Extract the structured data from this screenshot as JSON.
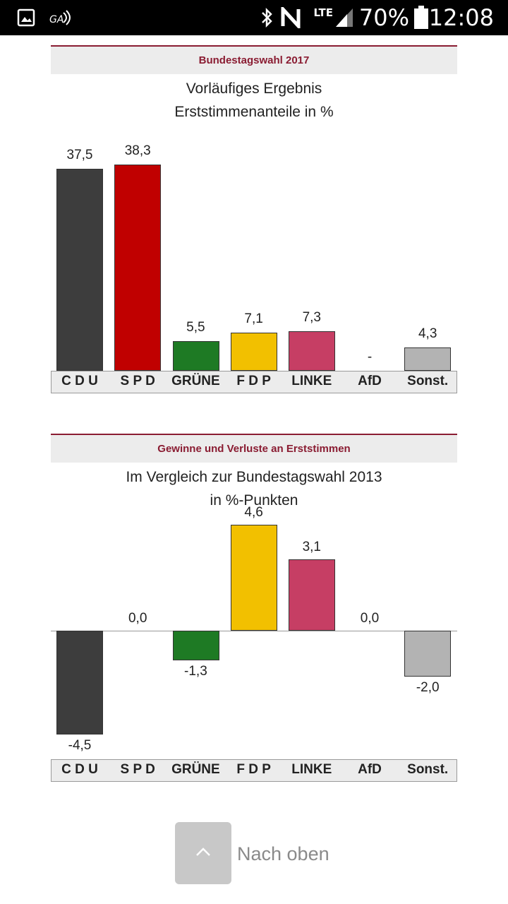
{
  "status_bar": {
    "lte": "LTE",
    "battery": "70%",
    "time": "12:08",
    "icons": [
      "gallery-icon",
      "cast-icon",
      "bluetooth-icon",
      "nfc-icon",
      "lte-icon",
      "signal-icon",
      "battery-icon"
    ]
  },
  "section1": {
    "header": "Bundestagswahl 2017",
    "title_line1": "Vorläufiges Ergebnis",
    "title_line2": "Erststimmenanteile in %"
  },
  "section2": {
    "header": "Gewinne und Verluste an Erststimmen",
    "title_line1": "Im Vergleich zur Bundestagswahl 2013",
    "title_line2": "in %-Punkten"
  },
  "footer": {
    "back_to_top": "Nach oben"
  },
  "colors": {
    "accent": "#8a1c32",
    "CDU": "#3d3d3d",
    "SPD": "#c00000",
    "GRUENE": "#1e7a24",
    "FDP": "#f2c000",
    "LINKE": "#c63e64",
    "AfD": "#1e90d0",
    "Sonst": "#b3b3b3"
  },
  "chart_data": [
    {
      "type": "bar",
      "title": "Vorläufiges Ergebnis",
      "subtitle": "Erststimmenanteile in %",
      "categories": [
        "C D U",
        "S P D",
        "GRÜNE",
        "F D P",
        "LINKE",
        "AfD",
        "Sonst."
      ],
      "values": [
        37.5,
        38.3,
        5.5,
        7.1,
        7.3,
        null,
        4.3
      ],
      "value_labels": [
        "37,5",
        "38,3",
        "5,5",
        "7,1",
        "7,3",
        "-",
        "4,3"
      ],
      "ylim": [
        0,
        40
      ],
      "grid": false
    },
    {
      "type": "bar",
      "title": "Im Vergleich zur Bundestagswahl 2013",
      "subtitle": "in %-Punkten",
      "categories": [
        "C D U",
        "S P D",
        "GRÜNE",
        "F D P",
        "LINKE",
        "AfD",
        "Sonst."
      ],
      "values": [
        -4.5,
        0.0,
        -1.3,
        4.6,
        3.1,
        0.0,
        -2.0
      ],
      "value_labels": [
        "-4,5",
        "0,0",
        "-1,3",
        "4,6",
        "3,1",
        "0,0",
        "-2,0"
      ],
      "ylim": [
        -5,
        5
      ],
      "grid": false
    }
  ]
}
